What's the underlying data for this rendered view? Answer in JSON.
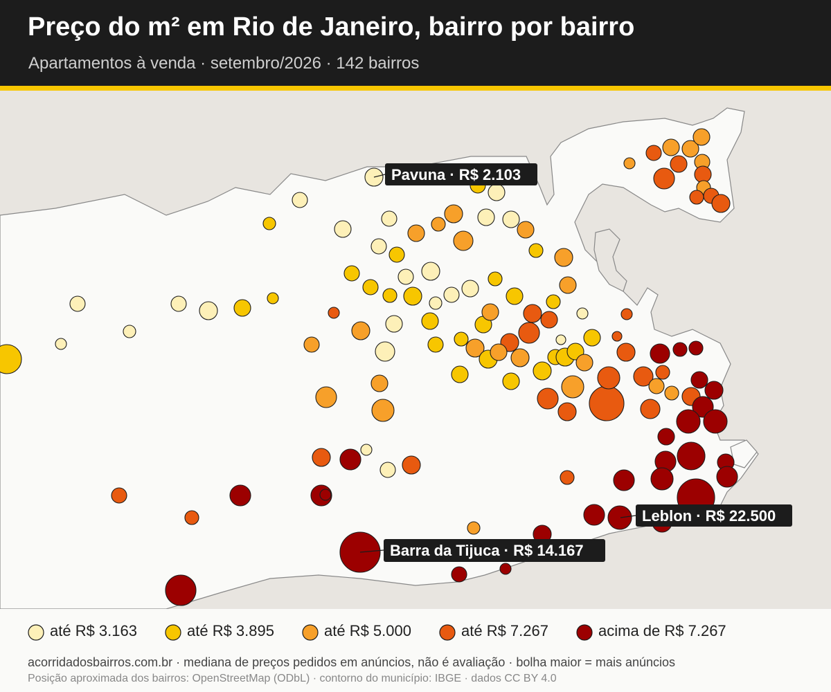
{
  "title": "Preço do m² em Rio de Janeiro, bairro por bairro",
  "subtitle": "Apartamentos à venda · setembro/2026 · 142 bairros",
  "colors": {
    "header_bg": "#1c1c1c",
    "accent": "#f7c600",
    "land": "#fafaf8",
    "water": "#e8e5e0",
    "tiers": [
      "#fdf0b8",
      "#f7c600",
      "#f7a02a",
      "#e85a10",
      "#9c0000"
    ]
  },
  "legend": [
    {
      "label": "até R$ 3.163",
      "tier": 0
    },
    {
      "label": "até R$ 3.895",
      "tier": 1
    },
    {
      "label": "até R$ 5.000",
      "tier": 2
    },
    {
      "label": "até R$ 7.267",
      "tier": 3
    },
    {
      "label": "acima de R$ 7.267",
      "tier": 4
    }
  ],
  "callouts": {
    "pavuna": "Pavuna · R$ 2.103",
    "leblon": "Leblon · R$ 22.500",
    "barra": "Barra da Tijuca · R$ 14.167"
  },
  "footer": {
    "line1": "acorridadosbairros.com.br · mediana de preços pedidos em anúncios, não é avaliação · bolha maior = mais anúncios",
    "line2": "Posição aproximada dos bairros: OpenStreetMap (ODbL) · contorno do município: IBGE · dados CC BY 4.0"
  }
}
